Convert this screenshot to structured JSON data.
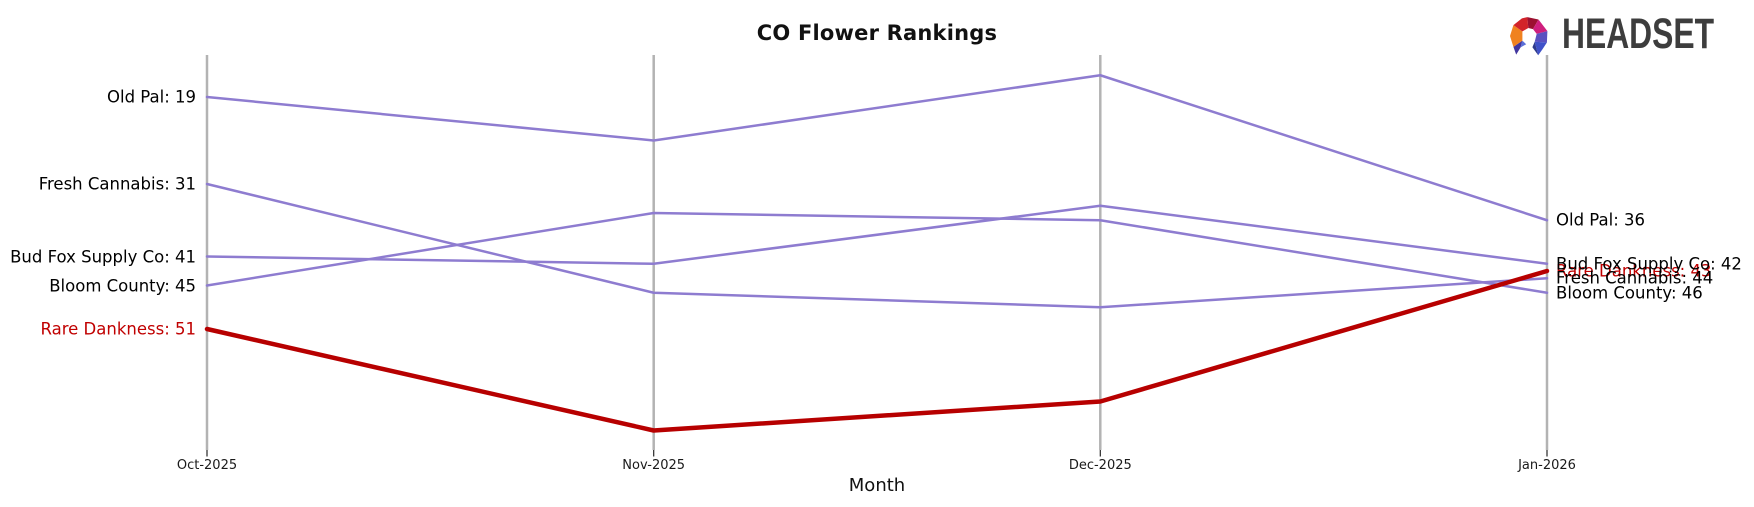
{
  "header": {
    "title": "CO Flower Rankings"
  },
  "logo": {
    "brand": "HEADSET",
    "icon": "headset-faceted-arch-icon"
  },
  "x_axis": {
    "label": "Month",
    "ticks": [
      "Oct-2025",
      "Nov-2025",
      "Dec-2025",
      "Jan-2026"
    ]
  },
  "chart_data": {
    "type": "line",
    "subtype": "bump-chart-of-rankings",
    "title": "CO Flower Rankings",
    "xlabel": "Month",
    "categories": [
      "Oct-2025",
      "Nov-2025",
      "Dec-2025",
      "Jan-2026"
    ],
    "y_axis": {
      "meaning": "brand rank (smaller number = higher position)",
      "inverted": true,
      "visible_rank_range": [
        16,
        65
      ],
      "tick_labels": "none - ranks shown in end labels"
    },
    "legend": "none - direct labels at line start and end",
    "series": [
      {
        "name": "Old Pal",
        "values": [
          19,
          25,
          16,
          36
        ],
        "start_label": "Old Pal: 19",
        "end_label": "Old Pal: 36",
        "highlight": false
      },
      {
        "name": "Fresh Cannabis",
        "values": [
          31,
          46,
          48,
          44
        ],
        "start_label": "Fresh Cannabis: 31",
        "end_label": "Fresh Cannabis: 44",
        "highlight": false
      },
      {
        "name": "Bud Fox Supply Co",
        "values": [
          41,
          42,
          34,
          42
        ],
        "start_label": "Bud Fox Supply Co: 41",
        "end_label": "Bud Fox Supply Co: 42",
        "highlight": false
      },
      {
        "name": "Bloom County",
        "values": [
          45,
          35,
          36,
          46
        ],
        "start_label": "Bloom County: 45",
        "end_label": "Bloom County: 46",
        "highlight": false
      },
      {
        "name": "Rare Dankness",
        "values": [
          51,
          65,
          61,
          43
        ],
        "start_label": "Rare Dankness: 51",
        "end_label": "Rare Dankness: 43",
        "highlight": true
      }
    ],
    "colors": {
      "line_default": "#8e7cd0",
      "line_highlight": "#b70000",
      "label_default": "#000000",
      "label_highlight": "#c00000",
      "axis_line": "#b3b3b3",
      "tick": "#262626"
    }
  }
}
